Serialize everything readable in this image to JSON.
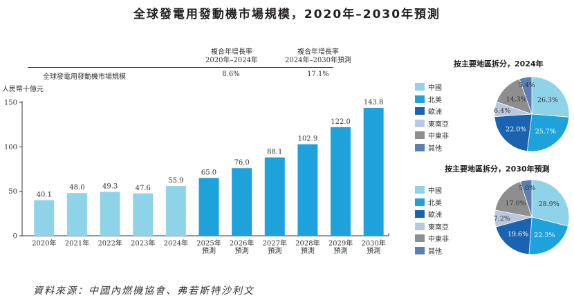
{
  "title": "全球發電用發動機市場規模，2020年–2030年預測",
  "cagr_table": {
    "headers": [
      "複合年增長率\n2020年–2024年",
      "複合年增長率\n2024年–2030年預測"
    ],
    "header_lines": [
      [
        "複合年增長率",
        "2020年–2024年"
      ],
      [
        "複合年增長率",
        "2024年–2030年預測"
      ]
    ],
    "row_label": "全球發電用發動機市場規模",
    "values": [
      "8.6%",
      "17.1%"
    ]
  },
  "source": "資料來源：中國內燃機協會、弗若斯特沙利文",
  "colors": {
    "historical_bar": "#8fd3e8",
    "forecast_bar": "#1ea2dc",
    "axis": "#333333"
  },
  "chart_data": [
    {
      "type": "bar",
      "title": "全球發電用發動機市場規模，2020年–2030年預測",
      "ylabel": "人民幣十億元",
      "xlabel": "",
      "ylim": [
        0,
        150
      ],
      "yticks": [
        0,
        50,
        100,
        150
      ],
      "categories": [
        [
          "2020年"
        ],
        [
          "2021年"
        ],
        [
          "2022年"
        ],
        [
          "2023年"
        ],
        [
          "2024年"
        ],
        [
          "2025年",
          "預測"
        ],
        [
          "2026年",
          "預測"
        ],
        [
          "2027年",
          "預測"
        ],
        [
          "2028年",
          "預測"
        ],
        [
          "2029年",
          "預測"
        ],
        [
          "2030年",
          "預測"
        ]
      ],
      "values": [
        40.1,
        48.0,
        49.3,
        47.6,
        55.9,
        65.0,
        76.0,
        88.1,
        102.9,
        122.0,
        143.8
      ],
      "value_labels": [
        "40.1",
        "48.0",
        "49.3",
        "47.6",
        "55.9",
        "65.0",
        "76.0",
        "88.1",
        "102.9",
        "122.0",
        "143.8"
      ],
      "forecast": [
        false,
        false,
        false,
        false,
        false,
        true,
        true,
        true,
        true,
        true,
        true
      ],
      "grid": false
    },
    {
      "type": "pie",
      "title": "按主要地區拆分，2024年",
      "labels": [
        "中國",
        "北美",
        "歐洲",
        "東南亞",
        "中東非",
        "其他"
      ],
      "values": [
        26.3,
        25.7,
        22.0,
        6.4,
        14.3,
        5.4
      ],
      "value_labels": [
        "26.3%",
        "25.7%",
        "22.0%",
        "6.4%",
        "14.3%",
        "5.4%"
      ],
      "colors": [
        "#8fd3e8",
        "#1ea2dc",
        "#1a63b0",
        "#b9c7e0",
        "#8e8e8e",
        "#5b7fb4"
      ],
      "legend": "left"
    },
    {
      "type": "pie",
      "title": "按主要地區拆分，2030年預測",
      "labels": [
        "中國",
        "北美",
        "歐洲",
        "東南亞",
        "中東非",
        "其他"
      ],
      "values": [
        28.9,
        22.3,
        19.6,
        7.2,
        17.0,
        5.0
      ],
      "value_labels": [
        "28.9%",
        "22.3%",
        "19.6%",
        "7.2%",
        "17.0%",
        "5.0%"
      ],
      "colors": [
        "#8fd3e8",
        "#1ea2dc",
        "#1a63b0",
        "#b9c7e0",
        "#8e8e8e",
        "#5b7fb4"
      ],
      "legend": "left"
    }
  ]
}
